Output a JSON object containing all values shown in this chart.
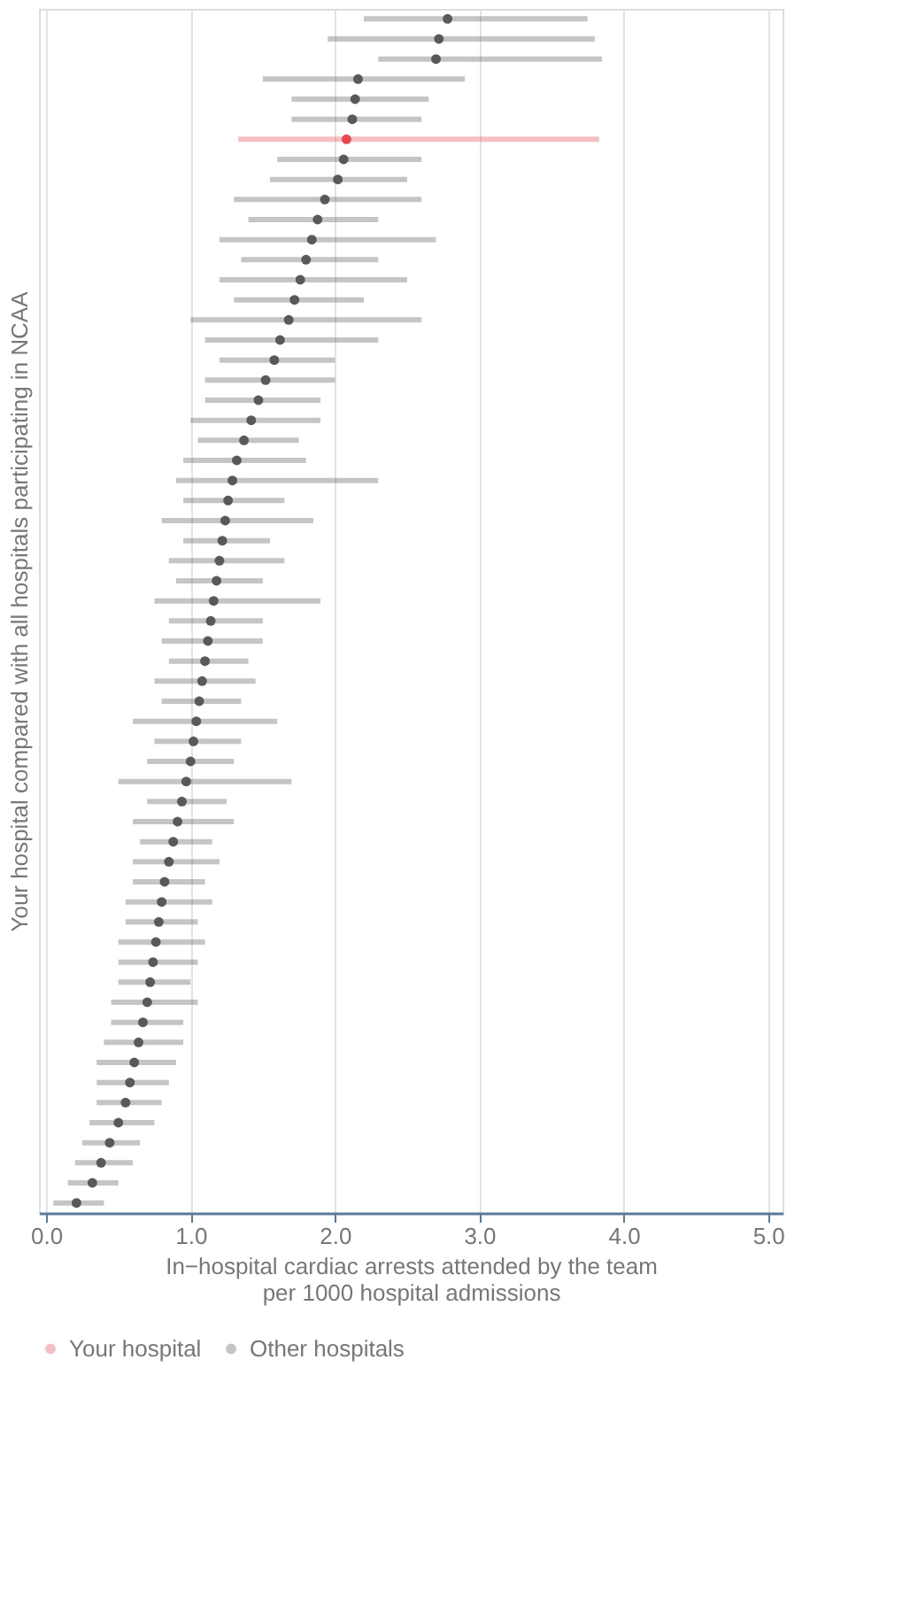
{
  "chart_data": {
    "type": "scatter",
    "orientation": "horizontal",
    "xlabel": "In−hospital cardiac arrests attended by the team\nper 1000 hospital admissions",
    "ylabel": "Your hospital compared with all hospitals participating in NCAA",
    "categories": [
      null,
      null,
      null,
      null,
      null,
      null,
      null,
      null,
      null,
      null,
      null,
      null,
      null,
      null,
      null,
      null,
      null,
      null,
      null,
      null,
      null,
      null,
      null,
      null,
      null,
      null,
      null,
      null,
      null,
      null,
      null,
      null,
      null,
      null,
      null,
      null,
      null,
      null,
      null,
      null,
      null,
      null,
      null,
      null,
      null,
      null,
      null,
      null,
      null,
      null,
      null,
      null,
      null,
      null,
      null,
      null,
      null,
      null,
      null,
      null
    ],
    "series": [
      {
        "name": "Your hospital",
        "color": "#e8474c",
        "values": [
          null,
          null,
          null,
          null,
          null,
          null,
          2.08,
          null,
          null,
          null,
          null,
          null,
          null,
          null,
          null,
          null,
          null,
          null,
          null,
          null,
          null,
          null,
          null,
          null,
          null,
          null,
          null,
          null,
          null,
          null,
          null,
          null,
          null,
          null,
          null,
          null,
          null,
          null,
          null,
          null,
          null,
          null,
          null,
          null,
          null,
          null,
          null,
          null,
          null,
          null,
          null,
          null,
          null,
          null,
          null,
          null,
          null,
          null,
          null,
          null
        ],
        "errors": [
          null,
          null,
          null,
          null,
          null,
          null,
          [
            1.33,
            3.83
          ],
          null,
          null,
          null,
          null,
          null,
          null,
          null,
          null,
          null,
          null,
          null,
          null,
          null,
          null,
          null,
          null,
          null,
          null,
          null,
          null,
          null,
          null,
          null,
          null,
          null,
          null,
          null,
          null,
          null,
          null,
          null,
          null,
          null,
          null,
          null,
          null,
          null,
          null,
          null,
          null,
          null,
          null,
          null,
          null,
          null,
          null,
          null,
          null,
          null,
          null,
          null,
          null,
          null
        ]
      },
      {
        "name": "Other hospitals",
        "color": "#595959",
        "values": [
          2.78,
          2.72,
          2.7,
          2.16,
          2.14,
          2.12,
          null,
          2.06,
          2.02,
          1.93,
          1.88,
          1.84,
          1.8,
          1.76,
          1.72,
          1.68,
          1.62,
          1.58,
          1.52,
          1.47,
          1.42,
          1.37,
          1.32,
          1.29,
          1.26,
          1.24,
          1.22,
          1.2,
          1.18,
          1.16,
          1.14,
          1.12,
          1.1,
          1.08,
          1.06,
          1.04,
          1.02,
          1.0,
          0.97,
          0.94,
          0.91,
          0.88,
          0.85,
          0.82,
          0.8,
          0.78,
          0.76,
          0.74,
          0.72,
          0.7,
          0.67,
          0.64,
          0.61,
          0.58,
          0.55,
          0.5,
          0.44,
          0.38,
          0.32,
          0.21
        ],
        "errors": [
          [
            2.2,
            3.75
          ],
          [
            1.95,
            3.8
          ],
          [
            2.3,
            3.85
          ],
          [
            1.5,
            2.9
          ],
          [
            1.7,
            2.65
          ],
          [
            1.7,
            2.6
          ],
          null,
          [
            1.6,
            2.6
          ],
          [
            1.55,
            2.5
          ],
          [
            1.3,
            2.6
          ],
          [
            1.4,
            2.3
          ],
          [
            1.2,
            2.7
          ],
          [
            1.35,
            2.3
          ],
          [
            1.2,
            2.5
          ],
          [
            1.3,
            2.2
          ],
          [
            1.0,
            2.6
          ],
          [
            1.1,
            2.3
          ],
          [
            1.2,
            2.0
          ],
          [
            1.1,
            2.0
          ],
          [
            1.1,
            1.9
          ],
          [
            1.0,
            1.9
          ],
          [
            1.05,
            1.75
          ],
          [
            0.95,
            1.8
          ],
          [
            0.9,
            2.3
          ],
          [
            0.95,
            1.65
          ],
          [
            0.8,
            1.85
          ],
          [
            0.95,
            1.55
          ],
          [
            0.85,
            1.65
          ],
          [
            0.9,
            1.5
          ],
          [
            0.75,
            1.9
          ],
          [
            0.85,
            1.5
          ],
          [
            0.8,
            1.5
          ],
          [
            0.85,
            1.4
          ],
          [
            0.75,
            1.45
          ],
          [
            0.8,
            1.35
          ],
          [
            0.6,
            1.6
          ],
          [
            0.75,
            1.35
          ],
          [
            0.7,
            1.3
          ],
          [
            0.5,
            1.7
          ],
          [
            0.7,
            1.25
          ],
          [
            0.6,
            1.3
          ],
          [
            0.65,
            1.15
          ],
          [
            0.6,
            1.2
          ],
          [
            0.6,
            1.1
          ],
          [
            0.55,
            1.15
          ],
          [
            0.55,
            1.05
          ],
          [
            0.5,
            1.1
          ],
          [
            0.5,
            1.05
          ],
          [
            0.5,
            1.0
          ],
          [
            0.45,
            1.05
          ],
          [
            0.45,
            0.95
          ],
          [
            0.4,
            0.95
          ],
          [
            0.35,
            0.9
          ],
          [
            0.35,
            0.85
          ],
          [
            0.35,
            0.8
          ],
          [
            0.3,
            0.75
          ],
          [
            0.25,
            0.65
          ],
          [
            0.2,
            0.6
          ],
          [
            0.15,
            0.5
          ],
          [
            0.05,
            0.4
          ]
        ]
      }
    ],
    "xlim": [
      -0.05,
      5.1
    ],
    "xticks": [
      {
        "value": 0,
        "label": "0.0"
      },
      {
        "value": 1,
        "label": "1.0"
      },
      {
        "value": 2,
        "label": "2.0"
      },
      {
        "value": 3,
        "label": "3.0"
      },
      {
        "value": 4,
        "label": "4.0"
      },
      {
        "value": 5,
        "label": "5.0"
      }
    ],
    "grid": "x",
    "legend": "bottom",
    "marker": "circle",
    "tick_labels": "x"
  }
}
